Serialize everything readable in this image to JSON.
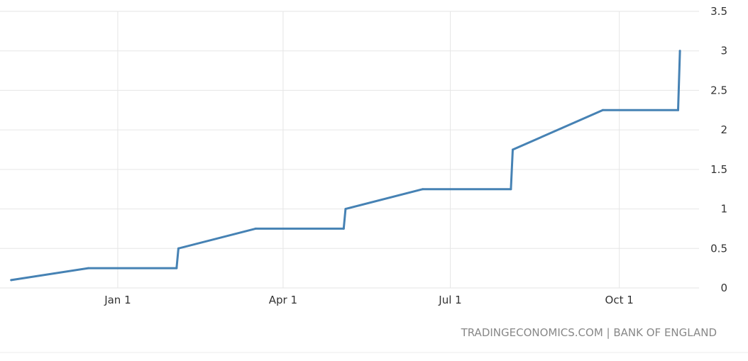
{
  "chart_data": {
    "type": "line",
    "title": "",
    "xlabel": "",
    "ylabel": "",
    "x_tick_labels": [
      "Jan 1",
      "Apr 1",
      "Jul 1",
      "Oct 1"
    ],
    "x_tick_dates": [
      "2022-01-01",
      "2022-04-01",
      "2022-07-01",
      "2022-10-01"
    ],
    "y_ticks": [
      "0",
      "0.5",
      "1",
      "1.5",
      "2",
      "2.5",
      "3",
      "3.5"
    ],
    "ylim": [
      0,
      3.5
    ],
    "xlim": [
      "2021-11-01",
      "2022-11-30"
    ],
    "grid": true,
    "source": "TRADINGECONOMICS.COM | BANK OF ENGLAND",
    "series": [
      {
        "color": "#4682b4",
        "points": [
          {
            "x": "2021-11-04",
            "y": 0.1
          },
          {
            "x": "2021-12-16",
            "y": 0.25
          },
          {
            "x": "2022-02-02",
            "y": 0.25
          },
          {
            "x": "2022-02-03",
            "y": 0.5
          },
          {
            "x": "2022-03-17",
            "y": 0.75
          },
          {
            "x": "2022-05-04",
            "y": 0.75
          },
          {
            "x": "2022-05-05",
            "y": 1.0
          },
          {
            "x": "2022-06-16",
            "y": 1.25
          },
          {
            "x": "2022-08-03",
            "y": 1.25
          },
          {
            "x": "2022-08-04",
            "y": 1.75
          },
          {
            "x": "2022-09-22",
            "y": 2.25
          },
          {
            "x": "2022-11-02",
            "y": 2.25
          },
          {
            "x": "2022-11-03",
            "y": 3.0
          }
        ]
      }
    ]
  }
}
